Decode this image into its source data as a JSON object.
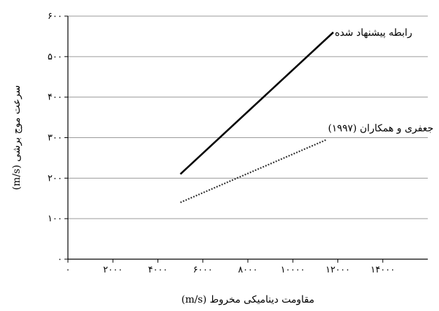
{
  "chart_data": {
    "type": "line",
    "title": "",
    "xlabel": "مقاومت دینامیکی مخروط (m/s)",
    "ylabel": "سرعت موج برشی (m/s)",
    "xlim": [
      0,
      16000
    ],
    "ylim": [
      0,
      600
    ],
    "x_ticks": [
      0,
      2000,
      4000,
      6000,
      8000,
      10000,
      12000,
      14000
    ],
    "x_tick_labels": [
      "۰",
      "۲۰۰۰",
      "۴۰۰۰",
      "۶۰۰۰",
      "۸۰۰۰",
      "۱۰۰۰۰",
      "۱۲۰۰۰",
      "۱۴۰۰۰"
    ],
    "y_ticks": [
      0,
      100,
      200,
      300,
      400,
      500,
      600
    ],
    "y_tick_labels": [
      "۰",
      "۱۰۰",
      "۲۰۰",
      "۳۰۰",
      "۴۰۰",
      "۵۰۰",
      "۶۰۰"
    ],
    "grid": true,
    "legend": "none",
    "series": [
      {
        "name": "رابطه پیشنهاد شده",
        "x": [
          5000,
          11800
        ],
        "y": [
          210,
          560
        ],
        "style": "solid",
        "color": "#000000"
      },
      {
        "name": "جعفری و همکاران (۱۹۹۷)",
        "x": [
          5000,
          11500
        ],
        "y": [
          140,
          295
        ],
        "style": "dotted",
        "color": "#333333"
      }
    ]
  }
}
